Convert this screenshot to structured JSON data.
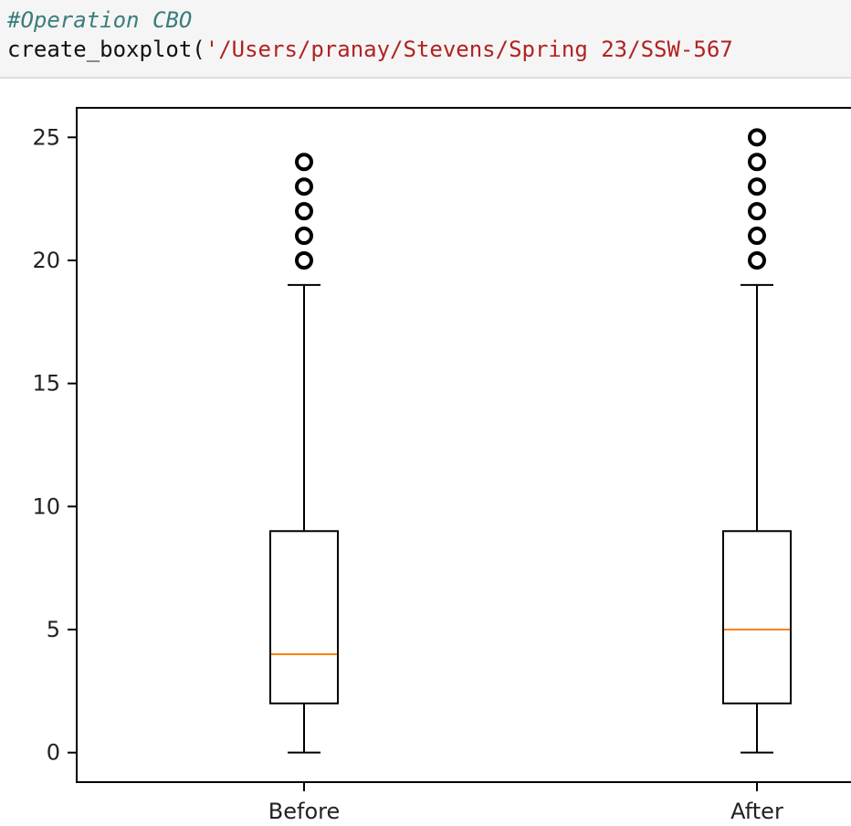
{
  "code": {
    "comment": "#Operation CBO",
    "fn": "create_boxplot(",
    "arg": "'/Users/pranay/Stevens/Spring 23/SSW-567"
  },
  "colors": {
    "median": "#ff7f0e",
    "box": "#000000",
    "comment": "#3a7d7c",
    "string": "#b22222"
  },
  "chart_data": {
    "type": "boxplot",
    "title": "",
    "xlabel": "",
    "ylabel": "",
    "ylim": [
      -1.2,
      26.2
    ],
    "y_ticks": [
      0,
      5,
      10,
      15,
      20,
      25
    ],
    "categories": [
      "Before",
      "After"
    ],
    "boxes": [
      {
        "label": "Before",
        "whisker_low": 0,
        "q1": 2,
        "median": 4,
        "q3": 9,
        "whisker_high": 19,
        "outliers": [
          20,
          21,
          22,
          23,
          24
        ]
      },
      {
        "label": "After",
        "whisker_low": 0,
        "q1": 2,
        "median": 5,
        "q3": 9,
        "whisker_high": 19,
        "outliers": [
          20,
          21,
          22,
          23,
          24,
          25
        ]
      }
    ],
    "grid": false
  }
}
